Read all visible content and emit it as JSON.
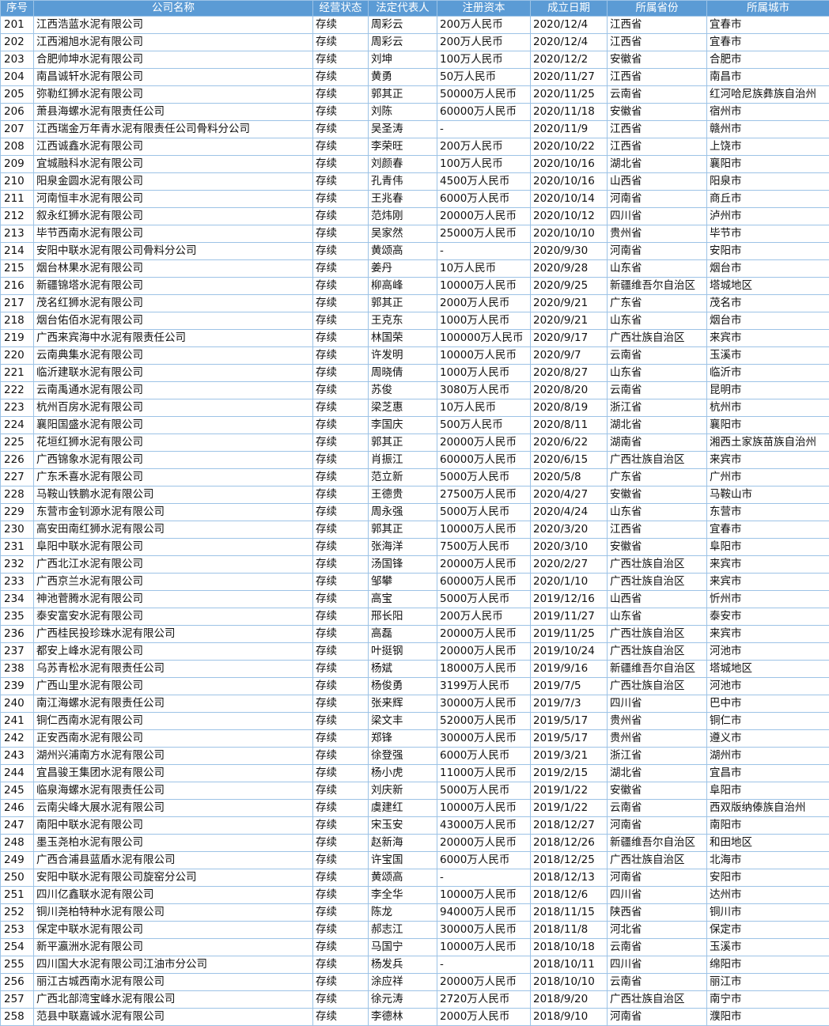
{
  "colors": {
    "header_bg": "#5b9bd5",
    "header_text": "#ffffff",
    "grid": "#9dc3e6"
  },
  "columns": [
    "序号",
    "公司名称",
    "经营状态",
    "法定代表人",
    "注册资本",
    "成立日期",
    "所属省份",
    "所属城市"
  ],
  "rows": [
    [
      "201",
      "江西浩蓝水泥有限公司",
      "存续",
      "周彩云",
      "200万人民币",
      "2020/12/4",
      "江西省",
      "宜春市"
    ],
    [
      "202",
      "江西湘旭水泥有限公司",
      "存续",
      "周彩云",
      "200万人民币",
      "2020/12/4",
      "江西省",
      "宜春市"
    ],
    [
      "203",
      "合肥帅坤水泥有限公司",
      "存续",
      "刘坤",
      "100万人民币",
      "2020/12/2",
      "安徽省",
      "合肥市"
    ],
    [
      "204",
      "南昌诚轩水泥有限公司",
      "存续",
      "黄勇",
      "50万人民币",
      "2020/11/27",
      "江西省",
      "南昌市"
    ],
    [
      "205",
      "弥勒红狮水泥有限公司",
      "存续",
      "郭其正",
      "50000万人民币",
      "2020/11/25",
      "云南省",
      "红河哈尼族彝族自治州"
    ],
    [
      "206",
      "萧县海螺水泥有限责任公司",
      "存续",
      "刘陈",
      "60000万人民币",
      "2020/11/18",
      "安徽省",
      "宿州市"
    ],
    [
      "207",
      "江西瑞金万年青水泥有限责任公司骨料分公司",
      "存续",
      "吴圣涛",
      "-",
      "2020/11/9",
      "江西省",
      "赣州市"
    ],
    [
      "208",
      "江西诚鑫水泥有限公司",
      "存续",
      "李荣旺",
      "200万人民币",
      "2020/10/22",
      "江西省",
      "上饶市"
    ],
    [
      "209",
      "宜城融科水泥有限公司",
      "存续",
      "刘颜春",
      "100万人民币",
      "2020/10/16",
      "湖北省",
      "襄阳市"
    ],
    [
      "210",
      "阳泉金圆水泥有限公司",
      "存续",
      "孔青伟",
      "4500万人民币",
      "2020/10/16",
      "山西省",
      "阳泉市"
    ],
    [
      "211",
      "河南恒丰水泥有限公司",
      "存续",
      "王兆春",
      "6000万人民币",
      "2020/10/14",
      "河南省",
      "商丘市"
    ],
    [
      "212",
      "叙永红狮水泥有限公司",
      "存续",
      "范炜刚",
      "20000万人民币",
      "2020/10/12",
      "四川省",
      "泸州市"
    ],
    [
      "213",
      "毕节西南水泥有限公司",
      "存续",
      "吴家然",
      "25000万人民币",
      "2020/10/10",
      "贵州省",
      "毕节市"
    ],
    [
      "214",
      "安阳中联水泥有限公司骨料分公司",
      "存续",
      "黄颂高",
      "-",
      "2020/9/30",
      "河南省",
      "安阳市"
    ],
    [
      "215",
      "烟台林果水泥有限公司",
      "存续",
      "姜丹",
      "10万人民币",
      "2020/9/28",
      "山东省",
      "烟台市"
    ],
    [
      "216",
      "新疆锦塔水泥有限公司",
      "存续",
      "柳高峰",
      "10000万人民币",
      "2020/9/25",
      "新疆维吾尔自治区",
      "塔城地区"
    ],
    [
      "217",
      "茂名红狮水泥有限公司",
      "存续",
      "郭其正",
      "2000万人民币",
      "2020/9/21",
      "广东省",
      "茂名市"
    ],
    [
      "218",
      "烟台佑佰水泥有限公司",
      "存续",
      "王克东",
      "1000万人民币",
      "2020/9/21",
      "山东省",
      "烟台市"
    ],
    [
      "219",
      "广西来宾海中水泥有限责任公司",
      "存续",
      "林国荣",
      "100000万人民币",
      "2020/9/17",
      "广西壮族自治区",
      "来宾市"
    ],
    [
      "220",
      "云南典集水泥有限公司",
      "存续",
      "许发明",
      "10000万人民币",
      "2020/9/7",
      "云南省",
      "玉溪市"
    ],
    [
      "221",
      "临沂建联水泥有限公司",
      "存续",
      "周晓倩",
      "1000万人民币",
      "2020/8/27",
      "山东省",
      "临沂市"
    ],
    [
      "222",
      "云南禹通水泥有限公司",
      "存续",
      "苏俊",
      "3080万人民币",
      "2020/8/20",
      "云南省",
      "昆明市"
    ],
    [
      "223",
      "杭州百房水泥有限公司",
      "存续",
      "梁芝惠",
      "10万人民币",
      "2020/8/19",
      "浙江省",
      "杭州市"
    ],
    [
      "224",
      "襄阳国盛水泥有限公司",
      "存续",
      "李国庆",
      "500万人民币",
      "2020/8/11",
      "湖北省",
      "襄阳市"
    ],
    [
      "225",
      "花垣红狮水泥有限公司",
      "存续",
      "郭其正",
      "20000万人民币",
      "2020/6/22",
      "湖南省",
      "湘西土家族苗族自治州"
    ],
    [
      "226",
      "广西锦象水泥有限公司",
      "存续",
      "肖振江",
      "60000万人民币",
      "2020/6/15",
      "广西壮族自治区",
      "来宾市"
    ],
    [
      "227",
      "广东禾喜水泥有限公司",
      "存续",
      "范立新",
      "5000万人民币",
      "2020/5/8",
      "广东省",
      "广州市"
    ],
    [
      "228",
      "马鞍山铁鹏水泥有限公司",
      "存续",
      "王德贵",
      "27500万人民币",
      "2020/4/27",
      "安徽省",
      "马鞍山市"
    ],
    [
      "229",
      "东营市金钊源水泥有限公司",
      "存续",
      "周永强",
      "5000万人民币",
      "2020/4/24",
      "山东省",
      "东营市"
    ],
    [
      "230",
      "高安田南红狮水泥有限公司",
      "存续",
      "郭其正",
      "10000万人民币",
      "2020/3/20",
      "江西省",
      "宜春市"
    ],
    [
      "231",
      "阜阳中联水泥有限公司",
      "存续",
      "张海洋",
      "7500万人民币",
      "2020/3/10",
      "安徽省",
      "阜阳市"
    ],
    [
      "232",
      "广西北江水泥有限公司",
      "存续",
      "汤国锋",
      "20000万人民币",
      "2020/2/27",
      "广西壮族自治区",
      "来宾市"
    ],
    [
      "233",
      "广西京兰水泥有限公司",
      "存续",
      "邹攀",
      "60000万人民币",
      "2020/1/10",
      "广西壮族自治区",
      "来宾市"
    ],
    [
      "234",
      "神池菅腾水泥有限公司",
      "存续",
      "高宝",
      "5000万人民币",
      "2019/12/16",
      "山西省",
      "忻州市"
    ],
    [
      "235",
      "泰安富安水泥有限公司",
      "存续",
      "邢长阳",
      "200万人民币",
      "2019/11/27",
      "山东省",
      "泰安市"
    ],
    [
      "236",
      "广西桂民投珍珠水泥有限公司",
      "存续",
      "高磊",
      "20000万人民币",
      "2019/11/25",
      "广西壮族自治区",
      "来宾市"
    ],
    [
      "237",
      "都安上峰水泥有限公司",
      "存续",
      "叶挺钢",
      "20000万人民币",
      "2019/10/24",
      "广西壮族自治区",
      "河池市"
    ],
    [
      "238",
      "乌苏青松水泥有限责任公司",
      "存续",
      "杨斌",
      "18000万人民币",
      "2019/9/16",
      "新疆维吾尔自治区",
      "塔城地区"
    ],
    [
      "239",
      "广西山里水泥有限公司",
      "存续",
      "杨俊勇",
      "3199万人民币",
      "2019/7/5",
      "广西壮族自治区",
      "河池市"
    ],
    [
      "240",
      "南江海螺水泥有限责任公司",
      "存续",
      "张来辉",
      "30000万人民币",
      "2019/7/3",
      "四川省",
      "巴中市"
    ],
    [
      "241",
      "铜仁西南水泥有限公司",
      "存续",
      "梁文丰",
      "52000万人民币",
      "2019/5/17",
      "贵州省",
      "铜仁市"
    ],
    [
      "242",
      "正安西南水泥有限公司",
      "存续",
      "郑锋",
      "30000万人民币",
      "2019/5/17",
      "贵州省",
      "遵义市"
    ],
    [
      "243",
      "湖州兴浦南方水泥有限公司",
      "存续",
      "徐登强",
      "6000万人民币",
      "2019/3/21",
      "浙江省",
      "湖州市"
    ],
    [
      "244",
      "宜昌骏王集团水泥有限公司",
      "存续",
      "杨小虎",
      "11000万人民币",
      "2019/2/15",
      "湖北省",
      "宜昌市"
    ],
    [
      "245",
      "临泉海螺水泥有限责任公司",
      "存续",
      "刘庆新",
      "5000万人民币",
      "2019/1/22",
      "安徽省",
      "阜阳市"
    ],
    [
      "246",
      "云南尖峰大展水泥有限公司",
      "存续",
      "虞建红",
      "10000万人民币",
      "2019/1/22",
      "云南省",
      "西双版纳傣族自治州"
    ],
    [
      "247",
      "南阳中联水泥有限公司",
      "存续",
      "宋玉安",
      "43000万人民币",
      "2018/12/27",
      "河南省",
      "南阳市"
    ],
    [
      "248",
      "墨玉尧柏水泥有限公司",
      "存续",
      "赵新海",
      "20000万人民币",
      "2018/12/26",
      "新疆维吾尔自治区",
      "和田地区"
    ],
    [
      "249",
      "广西合浦县蓝盾水泥有限公司",
      "存续",
      "许宝国",
      "6000万人民币",
      "2018/12/25",
      "广西壮族自治区",
      "北海市"
    ],
    [
      "250",
      "安阳中联水泥有限公司旋窑分公司",
      "存续",
      "黄颂高",
      "-",
      "2018/12/13",
      "河南省",
      "安阳市"
    ],
    [
      "251",
      "四川亿鑫联水泥有限公司",
      "存续",
      "李全华",
      "10000万人民币",
      "2018/12/6",
      "四川省",
      "达州市"
    ],
    [
      "252",
      "铜川尧柏特种水泥有限公司",
      "存续",
      "陈龙",
      "94000万人民币",
      "2018/11/15",
      "陕西省",
      "铜川市"
    ],
    [
      "253",
      "保定中联水泥有限公司",
      "存续",
      "郝志江",
      "30000万人民币",
      "2018/11/8",
      "河北省",
      "保定市"
    ],
    [
      "254",
      "新平瀛洲水泥有限公司",
      "存续",
      "马国宁",
      "10000万人民币",
      "2018/10/18",
      "云南省",
      "玉溪市"
    ],
    [
      "255",
      "四川国大水泥有限公司江油市分公司",
      "存续",
      "杨发兵",
      "-",
      "2018/10/11",
      "四川省",
      "绵阳市"
    ],
    [
      "256",
      "丽江古城西南水泥有限公司",
      "存续",
      "涂应祥",
      "20000万人民币",
      "2018/10/10",
      "云南省",
      "丽江市"
    ],
    [
      "257",
      "广西北部湾宝峰水泥有限公司",
      "存续",
      "徐元涛",
      "2720万人民币",
      "2018/9/20",
      "广西壮族自治区",
      "南宁市"
    ],
    [
      "258",
      "范县中联嘉诚水泥有限公司",
      "存续",
      "李德林",
      "2000万人民币",
      "2018/9/10",
      "河南省",
      "濮阳市"
    ]
  ]
}
